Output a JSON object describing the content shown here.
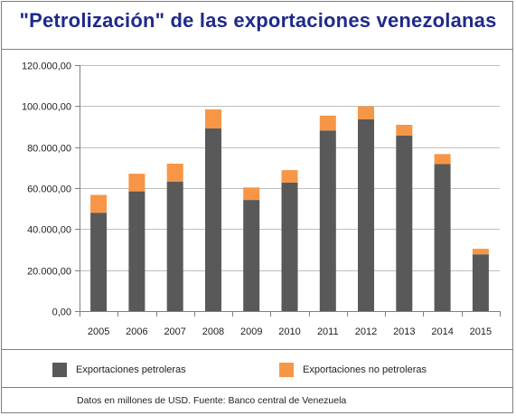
{
  "chart_data": {
    "type": "bar",
    "stacked": true,
    "title": "\"Petrolización\" de las exportaciones venezolanas",
    "categories": [
      "2005",
      "2006",
      "2007",
      "2008",
      "2009",
      "2010",
      "2011",
      "2012",
      "2013",
      "2014",
      "2015"
    ],
    "series": [
      {
        "name": "Exportaciones petroleras",
        "color": "#595959",
        "values": [
          48000,
          58400,
          63200,
          89100,
          54200,
          62700,
          88100,
          93600,
          85600,
          71700,
          27700
        ]
      },
      {
        "name": "Exportaciones no petroleras",
        "color": "#f79646",
        "values": [
          8700,
          8600,
          8700,
          9300,
          6100,
          6100,
          7300,
          6300,
          5300,
          4900,
          2700
        ]
      }
    ],
    "ylim": [
      0,
      120000
    ],
    "yticks": [
      0,
      20000,
      40000,
      60000,
      80000,
      100000,
      120000
    ],
    "ytick_labels": [
      "0,00",
      "20.000,00",
      "40.000,00",
      "60.000,00",
      "80.000,00",
      "100.000,00",
      "120.000,00"
    ],
    "grid": true,
    "legend_position": "bottom",
    "xlabel": "",
    "ylabel": ""
  },
  "footer": "Datos en millones de USD. Fuente: Banco central de Venezuela"
}
